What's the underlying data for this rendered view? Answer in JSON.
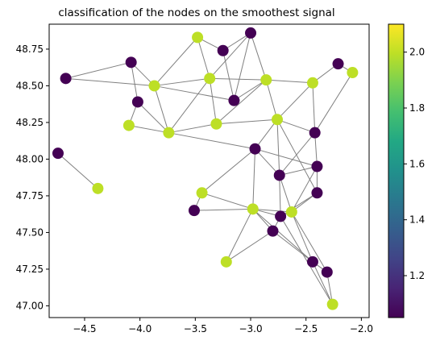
{
  "chart_data": {
    "type": "scatter",
    "title": "classification of the nodes on the smoothest signal",
    "xlabel": "",
    "ylabel": "",
    "xlim": [
      -4.82,
      -1.93
    ],
    "ylim": [
      46.92,
      48.92
    ],
    "x_ticks": [
      -4.5,
      -4.0,
      -3.5,
      -3.0,
      -2.5,
      -2.0
    ],
    "x_tick_labels": [
      "−4.5",
      "−4.0",
      "−3.5",
      "−3.0",
      "−2.5",
      "−2.0"
    ],
    "y_ticks": [
      47.0,
      47.25,
      47.5,
      47.75,
      48.0,
      48.25,
      48.5,
      48.75
    ],
    "y_tick_labels": [
      "47.00",
      "47.25",
      "47.50",
      "47.75",
      "48.00",
      "48.25",
      "48.50",
      "48.75"
    ],
    "grid": false,
    "colorbar": {
      "colormap": "viridis",
      "range": [
        1.05,
        2.1
      ],
      "ticks": [
        1.2,
        1.4,
        1.6,
        1.8,
        2.0
      ],
      "tick_labels": [
        "1.2",
        "1.4",
        "1.6",
        "1.8",
        "2.0"
      ]
    },
    "class_colors": {
      "1": "#440154",
      "2": "#bddf26"
    },
    "edge_color": "#808080",
    "nodes": [
      {
        "x": -4.67,
        "y": 48.55,
        "c": 1
      },
      {
        "x": -4.08,
        "y": 48.66,
        "c": 1
      },
      {
        "x": -4.02,
        "y": 48.39,
        "c": 1
      },
      {
        "x": -3.87,
        "y": 48.5,
        "c": 2
      },
      {
        "x": -3.48,
        "y": 48.83,
        "c": 2
      },
      {
        "x": -3.25,
        "y": 48.74,
        "c": 1
      },
      {
        "x": -3.0,
        "y": 48.86,
        "c": 1
      },
      {
        "x": -3.37,
        "y": 48.55,
        "c": 2
      },
      {
        "x": -3.15,
        "y": 48.4,
        "c": 1
      },
      {
        "x": -2.86,
        "y": 48.54,
        "c": 2
      },
      {
        "x": -2.44,
        "y": 48.52,
        "c": 2
      },
      {
        "x": -2.21,
        "y": 48.65,
        "c": 1
      },
      {
        "x": -2.08,
        "y": 48.59,
        "c": 2
      },
      {
        "x": -4.1,
        "y": 48.23,
        "c": 2
      },
      {
        "x": -3.74,
        "y": 48.18,
        "c": 2
      },
      {
        "x": -3.31,
        "y": 48.24,
        "c": 2
      },
      {
        "x": -2.76,
        "y": 48.27,
        "c": 2
      },
      {
        "x": -2.42,
        "y": 48.18,
        "c": 1
      },
      {
        "x": -4.74,
        "y": 48.04,
        "c": 1
      },
      {
        "x": -4.38,
        "y": 47.8,
        "c": 2
      },
      {
        "x": -2.96,
        "y": 48.07,
        "c": 1
      },
      {
        "x": -2.4,
        "y": 47.95,
        "c": 1
      },
      {
        "x": -2.74,
        "y": 47.89,
        "c": 1
      },
      {
        "x": -3.44,
        "y": 47.77,
        "c": 2
      },
      {
        "x": -2.4,
        "y": 47.77,
        "c": 1
      },
      {
        "x": -3.51,
        "y": 47.65,
        "c": 1
      },
      {
        "x": -2.98,
        "y": 47.66,
        "c": 2
      },
      {
        "x": -2.63,
        "y": 47.64,
        "c": 2
      },
      {
        "x": -2.73,
        "y": 47.61,
        "c": 1
      },
      {
        "x": -2.8,
        "y": 47.51,
        "c": 1
      },
      {
        "x": -3.22,
        "y": 47.3,
        "c": 2
      },
      {
        "x": -2.44,
        "y": 47.3,
        "c": 1
      },
      {
        "x": -2.31,
        "y": 47.23,
        "c": 1
      },
      {
        "x": -2.26,
        "y": 47.01,
        "c": 2
      }
    ],
    "edges": [
      [
        0,
        1
      ],
      [
        0,
        3
      ],
      [
        1,
        2
      ],
      [
        1,
        3
      ],
      [
        2,
        13
      ],
      [
        2,
        14
      ],
      [
        3,
        4
      ],
      [
        3,
        7
      ],
      [
        3,
        14
      ],
      [
        3,
        8
      ],
      [
        4,
        5
      ],
      [
        4,
        7
      ],
      [
        5,
        6
      ],
      [
        5,
        8
      ],
      [
        6,
        7
      ],
      [
        6,
        9
      ],
      [
        6,
        8
      ],
      [
        7,
        9
      ],
      [
        7,
        14
      ],
      [
        7,
        15
      ],
      [
        8,
        9
      ],
      [
        9,
        10
      ],
      [
        9,
        15
      ],
      [
        9,
        16
      ],
      [
        10,
        11
      ],
      [
        10,
        16
      ],
      [
        10,
        17
      ],
      [
        11,
        12
      ],
      [
        12,
        17
      ],
      [
        13,
        14
      ],
      [
        14,
        15
      ],
      [
        15,
        16
      ],
      [
        16,
        17
      ],
      [
        16,
        20
      ],
      [
        16,
        22
      ],
      [
        17,
        21
      ],
      [
        17,
        22
      ],
      [
        18,
        19
      ],
      [
        14,
        20
      ],
      [
        20,
        21
      ],
      [
        20,
        23
      ],
      [
        20,
        26
      ],
      [
        20,
        22
      ],
      [
        21,
        22
      ],
      [
        21,
        24
      ],
      [
        21,
        27
      ],
      [
        22,
        28
      ],
      [
        22,
        27
      ],
      [
        23,
        25
      ],
      [
        23,
        26
      ],
      [
        25,
        26
      ],
      [
        26,
        27
      ],
      [
        26,
        28
      ],
      [
        26,
        29
      ],
      [
        26,
        30
      ],
      [
        26,
        31
      ],
      [
        27,
        28
      ],
      [
        27,
        31
      ],
      [
        27,
        32
      ],
      [
        28,
        29
      ],
      [
        29,
        30
      ],
      [
        29,
        31
      ],
      [
        31,
        32
      ],
      [
        31,
        33
      ],
      [
        32,
        33
      ],
      [
        28,
        33
      ],
      [
        24,
        27
      ],
      [
        24,
        28
      ],
      [
        16,
        24
      ]
    ]
  }
}
